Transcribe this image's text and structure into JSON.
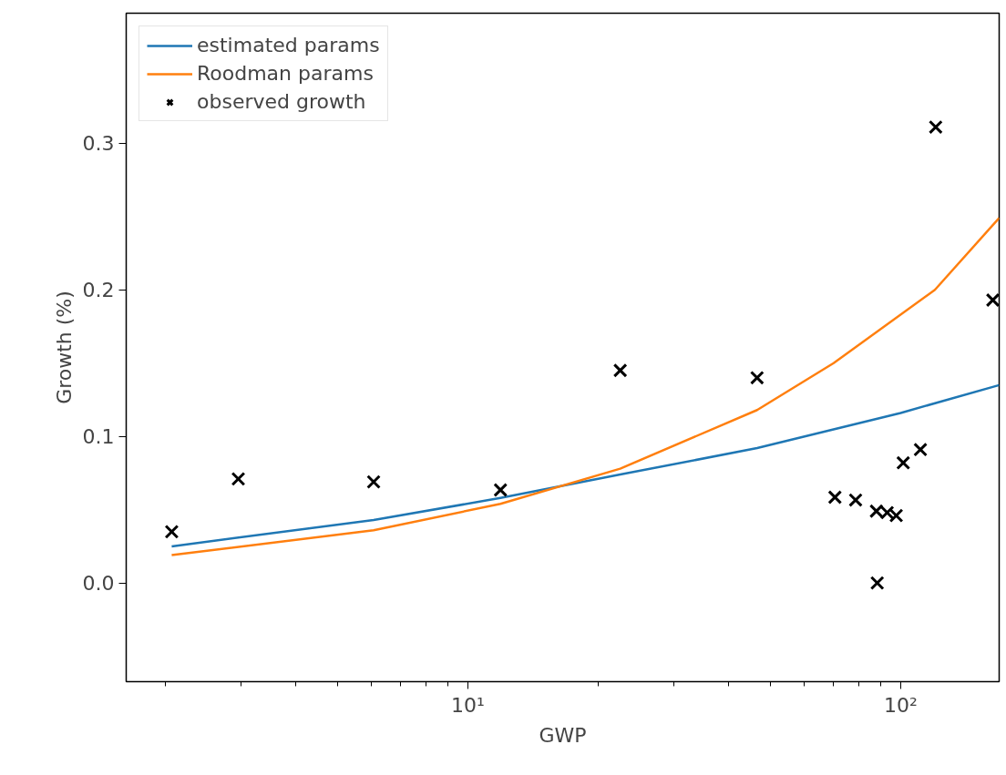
{
  "chart_data": {
    "type": "line",
    "xlabel": "GWP",
    "ylabel": "Growth (%)",
    "log": "x",
    "grid": false,
    "legend": "top left",
    "xlim": [
      1.625,
      168.9
    ],
    "ylim": [
      -0.0673,
      0.3887
    ],
    "xticks": [
      {
        "value": 2,
        "label": null
      },
      {
        "value": 3,
        "label": null
      },
      {
        "value": 4,
        "label": null
      },
      {
        "value": 5,
        "label": null
      },
      {
        "value": 6,
        "label": null
      },
      {
        "value": 7,
        "label": null
      },
      {
        "value": 8,
        "label": null
      },
      {
        "value": 9,
        "label": null
      },
      {
        "value": 10,
        "label": "10¹"
      },
      {
        "value": 20,
        "label": null
      },
      {
        "value": 30,
        "label": null
      },
      {
        "value": 40,
        "label": null
      },
      {
        "value": 50,
        "label": null
      },
      {
        "value": 60,
        "label": null
      },
      {
        "value": 70,
        "label": null
      },
      {
        "value": 80,
        "label": null
      },
      {
        "value": 90,
        "label": null
      },
      {
        "value": 100,
        "label": "10²"
      }
    ],
    "yticks": [
      {
        "value": 0,
        "label": "0.0"
      },
      0.1,
      0.2,
      0.3
    ],
    "series": [
      {
        "name": "estimated params",
        "color": "#1f77b4",
        "line_style": "solid",
        "marker": "none",
        "x": [
          2.07,
          6.06,
          11.9,
          22.5,
          46.6,
          100,
          168.9
        ],
        "values": [
          0.025,
          0.043,
          0.058,
          0.074,
          0.092,
          0.116,
          0.135
        ]
      },
      {
        "name": "Roodman params",
        "color": "#ff7f0e",
        "line_style": "solid",
        "marker": "none",
        "x": [
          2.07,
          6.06,
          11.9,
          22.5,
          46.6,
          70,
          120,
          168.9
        ],
        "values": [
          0.019,
          0.036,
          0.054,
          0.078,
          0.118,
          0.15,
          0.2,
          0.249
        ]
      },
      {
        "name": "observed growth",
        "type": "scatter",
        "color": "#000000",
        "marker": "cross",
        "x": [
          2.07,
          2.95,
          6.06,
          11.9,
          22.5,
          46.6,
          70.5,
          78.7,
          87.9,
          88.3,
          93.1,
          97.7,
          101.4,
          111.1,
          120.5,
          163.3
        ],
        "values": [
          0.035,
          0.071,
          0.069,
          0.0635,
          0.145,
          0.14,
          0.0585,
          0.0566,
          0.049,
          0.0,
          0.048,
          0.046,
          0.082,
          0.091,
          0.311,
          0.193
        ]
      }
    ]
  }
}
